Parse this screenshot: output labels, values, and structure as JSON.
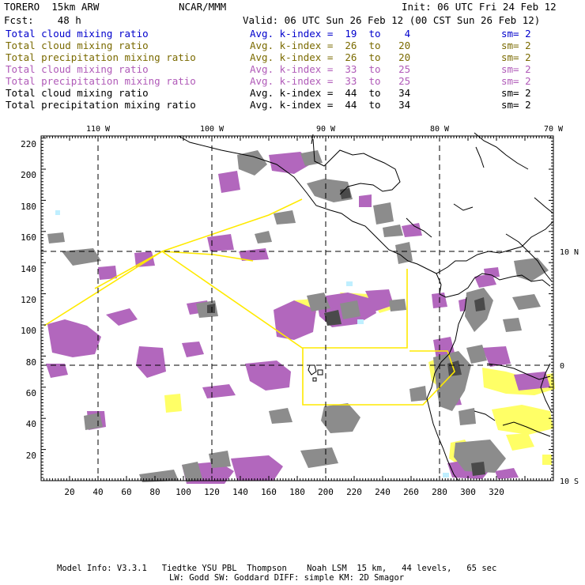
{
  "header": {
    "model": "TORERO  15km ARW",
    "org": "NCAR/MMM",
    "init": "Init: 06 UTC Fri 24 Feb 12",
    "fcst": "Fcst:    48 h",
    "valid": "Valid: 06 UTC Sun 26 Feb 12 (00 CST Sun 26 Feb 12)"
  },
  "legend": [
    {
      "field": "Total cloud mixing ratio",
      "kindex": "Avg. k-index =  19  to    4",
      "sm": "sm= 2",
      "color": "#0000cc"
    },
    {
      "field": "Total cloud mixing ratio",
      "kindex": "Avg. k-index =  26  to   20",
      "sm": "sm= 2",
      "color": "#7a6a00"
    },
    {
      "field": "Total precipitation mixing ratio",
      "kindex": "Avg. k-index =  26  to   20",
      "sm": "sm= 2",
      "color": "#7a6a00"
    },
    {
      "field": "Total cloud mixing ratio",
      "kindex": "Avg. k-index =  33  to   25",
      "sm": "sm= 2",
      "color": "#b05ab8"
    },
    {
      "field": "Total precipitation mixing ratio",
      "kindex": "Avg. k-index =  33  to   25",
      "sm": "sm= 2",
      "color": "#b05ab8"
    },
    {
      "field": "Total cloud mixing ratio",
      "kindex": "Avg. k-index =  44  to   34",
      "sm": "sm= 2",
      "color": "#000000"
    },
    {
      "field": "Total precipitation mixing ratio",
      "kindex": "Avg. k-index =  44  to   34",
      "sm": "sm= 2",
      "color": "#000000"
    }
  ],
  "map": {
    "lon_labels": [
      "110 W",
      "100 W",
      "90 W",
      "80 W",
      "70 W"
    ],
    "lat_labels": [
      "10 N",
      "0",
      "10 S"
    ],
    "y_ticks": [
      "220",
      "200",
      "180",
      "160",
      "140",
      "120",
      "100",
      "80",
      "60",
      "40",
      "20"
    ],
    "x_ticks": [
      "20",
      "40",
      "60",
      "80",
      "100",
      "120",
      "140",
      "160",
      "180",
      "200",
      "220",
      "240",
      "260",
      "280",
      "300",
      "320"
    ],
    "colors": {
      "gray": "#8c8c8c",
      "dark": "#4a4a4a",
      "purple": "#b267bd",
      "yellow": "#ffff66",
      "line": "#ffea00",
      "cyan": "#bfefff"
    }
  },
  "footer": {
    "line1": "Model Info: V3.3.1   Tiedtke YSU PBL  Thompson    Noah LSM  15 km,   44 levels,   65 sec",
    "line2": "LW: Godd SW: Goddard DIFF: simple KM: 2D Smagor"
  }
}
